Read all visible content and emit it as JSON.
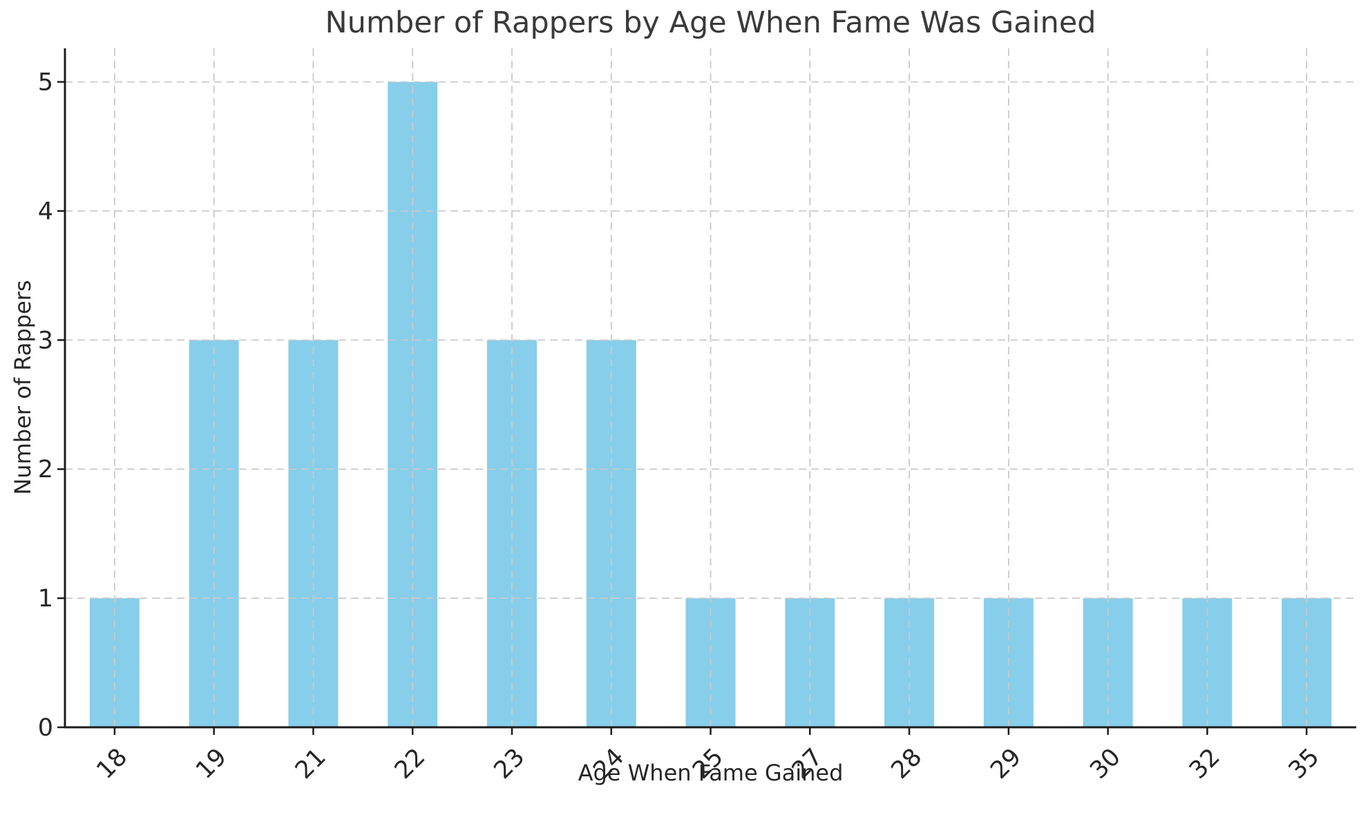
{
  "chart_data": {
    "type": "bar",
    "title": "Number of Rappers by Age When Fame Was Gained",
    "xlabel": "Age When Fame Gained",
    "ylabel": "Number of Rappers",
    "categories": [
      "18",
      "19",
      "21",
      "22",
      "23",
      "24",
      "25",
      "27",
      "28",
      "29",
      "30",
      "32",
      "35"
    ],
    "values": [
      1,
      3,
      3,
      5,
      3,
      3,
      1,
      1,
      1,
      1,
      1,
      1,
      1
    ],
    "yticks": [
      0,
      1,
      2,
      3,
      4,
      5
    ],
    "ylim": [
      0,
      5.26
    ],
    "x_tick_rotation_deg": 45,
    "grid": true,
    "grid_style": "dashed",
    "legend": "none",
    "colors": {
      "bar_fill": "#87CEEB",
      "grid_line": "#c9c9c9",
      "axis_spine": "#1c1c1c",
      "tick_text": "#262626",
      "title_text": "#3a3a3a",
      "background": "#ffffff"
    }
  }
}
